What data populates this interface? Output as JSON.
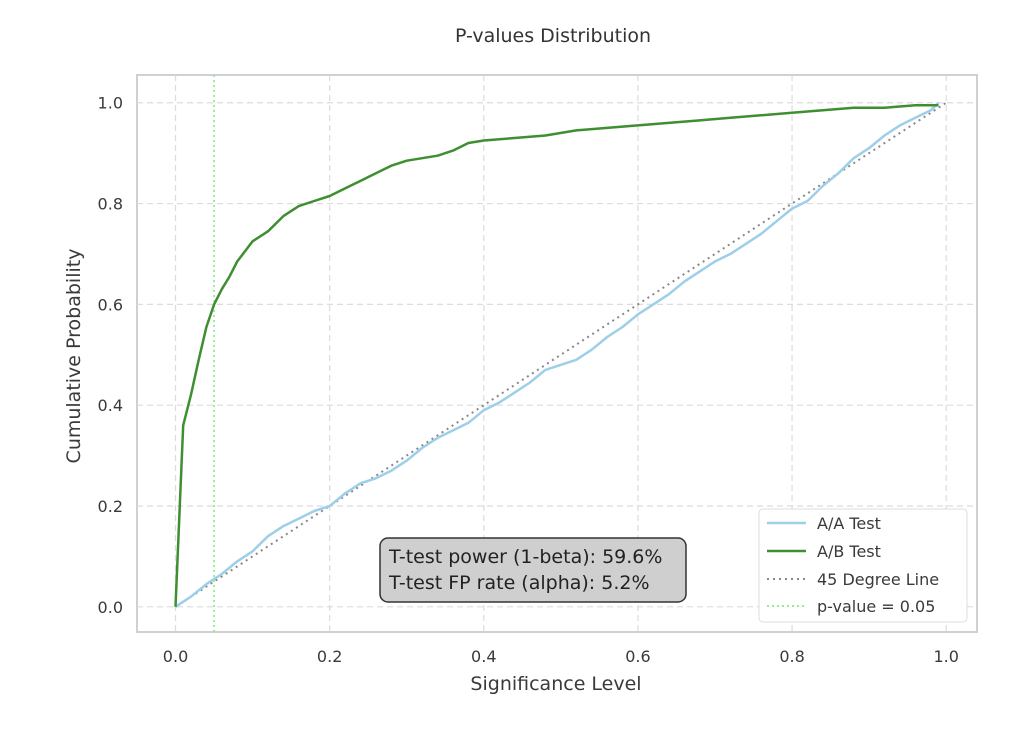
{
  "chart_data": {
    "type": "line",
    "title": "P-values Distribution",
    "xlabel": "Significance Level",
    "ylabel": "Cumulative Probability",
    "xlim": [
      -0.05,
      1.04
    ],
    "ylim": [
      -0.05,
      1.055
    ],
    "xticks": [
      0.0,
      0.2,
      0.4,
      0.6,
      0.8,
      1.0
    ],
    "xtick_labels": [
      "0.0",
      "0.2",
      "0.4",
      "0.6",
      "0.8",
      "1.0"
    ],
    "yticks": [
      0.0,
      0.2,
      0.4,
      0.6,
      0.8,
      1.0
    ],
    "ytick_labels": [
      "0.0",
      "0.2",
      "0.4",
      "0.6",
      "0.8",
      "1.0"
    ],
    "grid": true,
    "legend_position": "lower-right",
    "series": [
      {
        "name": "A/A Test",
        "color": "#9ecfe8",
        "style": "solid",
        "x": [
          0.0,
          0.02,
          0.04,
          0.06,
          0.08,
          0.1,
          0.12,
          0.14,
          0.16,
          0.18,
          0.2,
          0.22,
          0.24,
          0.26,
          0.28,
          0.3,
          0.32,
          0.34,
          0.36,
          0.38,
          0.4,
          0.42,
          0.44,
          0.46,
          0.48,
          0.5,
          0.52,
          0.54,
          0.56,
          0.58,
          0.6,
          0.62,
          0.64,
          0.66,
          0.68,
          0.7,
          0.72,
          0.74,
          0.76,
          0.78,
          0.8,
          0.82,
          0.84,
          0.86,
          0.88,
          0.9,
          0.92,
          0.94,
          0.96,
          0.98,
          0.99
        ],
        "y": [
          0.0,
          0.02,
          0.045,
          0.065,
          0.09,
          0.11,
          0.14,
          0.16,
          0.175,
          0.19,
          0.2,
          0.225,
          0.245,
          0.255,
          0.27,
          0.29,
          0.315,
          0.335,
          0.35,
          0.365,
          0.39,
          0.405,
          0.425,
          0.445,
          0.47,
          0.48,
          0.49,
          0.51,
          0.535,
          0.555,
          0.58,
          0.6,
          0.62,
          0.645,
          0.665,
          0.685,
          0.7,
          0.72,
          0.74,
          0.765,
          0.79,
          0.805,
          0.835,
          0.86,
          0.89,
          0.91,
          0.935,
          0.955,
          0.97,
          0.985,
          1.0
        ]
      },
      {
        "name": "A/B Test",
        "color": "#3f8f32",
        "style": "solid",
        "x": [
          0.0,
          0.01,
          0.02,
          0.03,
          0.04,
          0.05,
          0.06,
          0.07,
          0.08,
          0.1,
          0.12,
          0.14,
          0.16,
          0.18,
          0.2,
          0.22,
          0.24,
          0.26,
          0.28,
          0.3,
          0.32,
          0.34,
          0.36,
          0.38,
          0.4,
          0.44,
          0.48,
          0.52,
          0.56,
          0.6,
          0.64,
          0.68,
          0.72,
          0.76,
          0.8,
          0.84,
          0.88,
          0.92,
          0.96,
          0.99
        ],
        "y": [
          0.0,
          0.36,
          0.42,
          0.49,
          0.555,
          0.6,
          0.63,
          0.655,
          0.685,
          0.725,
          0.745,
          0.775,
          0.795,
          0.805,
          0.815,
          0.83,
          0.845,
          0.86,
          0.875,
          0.885,
          0.89,
          0.895,
          0.905,
          0.92,
          0.925,
          0.93,
          0.935,
          0.945,
          0.95,
          0.955,
          0.96,
          0.965,
          0.97,
          0.975,
          0.98,
          0.985,
          0.99,
          0.99,
          0.995,
          0.995
        ]
      },
      {
        "name": "45 Degree Line",
        "color": "#888888",
        "style": "dotted",
        "x": [
          0.0,
          1.0
        ],
        "y": [
          0.0,
          1.0
        ]
      }
    ],
    "vline": {
      "name": "p-value = 0.05",
      "x": 0.05,
      "color": "#90ee90",
      "style": "dotted"
    },
    "annotation": {
      "lines": [
        "T-test power (1-beta): 59.6%",
        "T-test FP rate (alpha): 5.2%"
      ]
    }
  }
}
